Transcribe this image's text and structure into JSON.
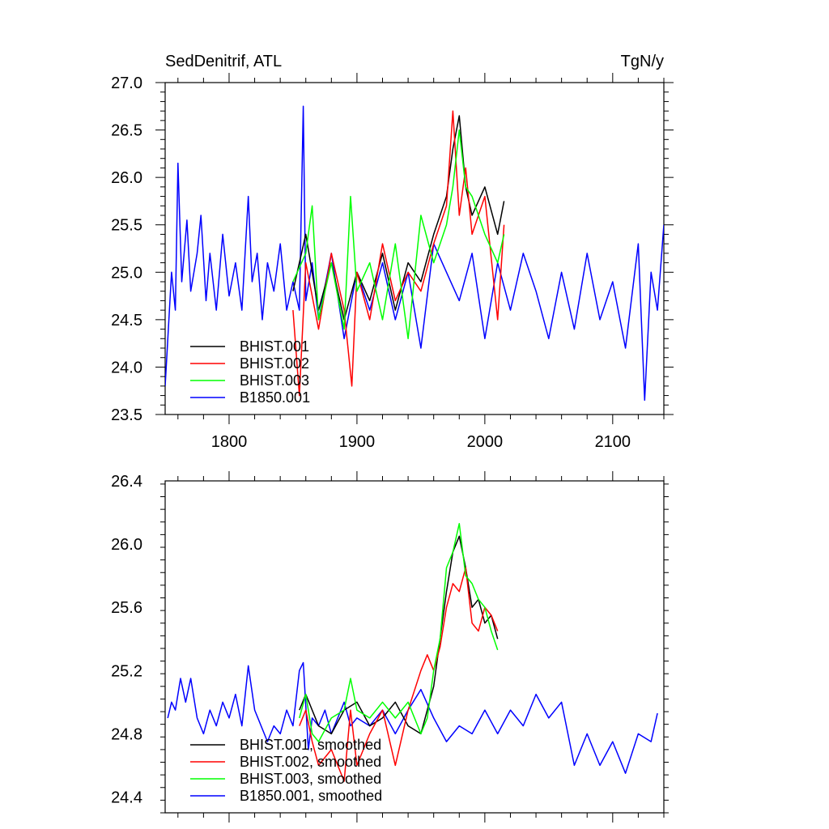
{
  "chart_data": [
    {
      "type": "line",
      "title": "SedDenitrif, ATL",
      "units": "TgN/y",
      "xlim": [
        1750,
        2140
      ],
      "ylim": [
        23.5,
        27.0
      ],
      "xticks": [
        1800,
        1900,
        2000,
        2100
      ],
      "yticks": [
        23.5,
        24.0,
        24.5,
        25.0,
        25.5,
        26.0,
        26.5,
        27.0
      ],
      "ytick_labels": [
        "23.5",
        "24.0",
        "24.5",
        "25.0",
        "25.5",
        "26.0",
        "26.5",
        "27.0"
      ],
      "legend_location": "bottom-left",
      "series": [
        {
          "name": "B1850.001",
          "color": "#0000ff",
          "x": [
            1750,
            1755,
            1758,
            1760,
            1763,
            1767,
            1770,
            1775,
            1778,
            1782,
            1785,
            1790,
            1795,
            1800,
            1805,
            1810,
            1815,
            1818,
            1822,
            1826,
            1830,
            1835,
            1840,
            1845,
            1850,
            1855,
            1858,
            1860,
            1865,
            1870,
            1880,
            1890,
            1900,
            1910,
            1920,
            1930,
            1940,
            1950,
            1960,
            1970,
            1980,
            1990,
            2000,
            2010,
            2020,
            2030,
            2040,
            2050,
            2060,
            2070,
            2080,
            2090,
            2100,
            2110,
            2120,
            2125,
            2130,
            2135,
            2140
          ],
          "y": [
            23.8,
            25.0,
            24.6,
            26.15,
            24.9,
            25.55,
            24.8,
            25.2,
            25.6,
            24.7,
            25.2,
            24.6,
            25.4,
            24.75,
            25.1,
            24.6,
            25.8,
            24.9,
            25.2,
            24.5,
            25.1,
            24.8,
            25.3,
            24.6,
            24.9,
            24.6,
            26.75,
            24.7,
            25.1,
            24.5,
            25.2,
            24.3,
            25.0,
            24.6,
            25.1,
            24.5,
            25.0,
            24.2,
            25.3,
            25.0,
            24.7,
            25.2,
            24.3,
            25.1,
            24.6,
            25.2,
            24.8,
            24.3,
            25.0,
            24.4,
            25.2,
            24.5,
            24.9,
            24.2,
            25.3,
            23.65,
            25.0,
            24.6,
            25.5
          ]
        },
        {
          "name": "BHIST.001",
          "color": "#000000",
          "x": [
            1850,
            1860,
            1870,
            1880,
            1890,
            1900,
            1910,
            1920,
            1930,
            1940,
            1950,
            1960,
            1970,
            1975,
            1980,
            1985,
            1990,
            2000,
            2010,
            2015
          ],
          "y": [
            24.8,
            25.4,
            24.6,
            25.1,
            24.5,
            25.0,
            24.7,
            25.2,
            24.6,
            25.1,
            24.9,
            25.4,
            25.8,
            26.3,
            26.65,
            25.9,
            25.6,
            25.9,
            25.4,
            25.75
          ]
        },
        {
          "name": "BHIST.002",
          "color": "#ff0000",
          "x": [
            1850,
            1855,
            1860,
            1870,
            1880,
            1890,
            1896,
            1900,
            1910,
            1920,
            1930,
            1940,
            1950,
            1960,
            1970,
            1975,
            1980,
            1985,
            1990,
            2000,
            2010,
            2015
          ],
          "y": [
            24.6,
            23.7,
            25.1,
            24.4,
            25.2,
            24.6,
            23.8,
            25.0,
            24.5,
            25.3,
            24.7,
            25.0,
            24.8,
            25.3,
            25.7,
            26.7,
            25.6,
            26.1,
            25.4,
            25.8,
            24.5,
            25.5
          ]
        },
        {
          "name": "BHIST.003",
          "color": "#00ff00",
          "x": [
            1850,
            1860,
            1865,
            1870,
            1880,
            1890,
            1895,
            1900,
            1910,
            1920,
            1930,
            1940,
            1950,
            1960,
            1970,
            1975,
            1980,
            1985,
            1990,
            2000,
            2010,
            2015
          ],
          "y": [
            24.9,
            25.2,
            25.7,
            24.5,
            25.1,
            24.4,
            25.8,
            24.8,
            25.1,
            24.5,
            25.3,
            24.3,
            25.6,
            25.1,
            25.5,
            25.9,
            26.5,
            25.9,
            25.8,
            25.4,
            25.1,
            25.4
          ]
        }
      ]
    },
    {
      "type": "line",
      "xlim": [
        1750,
        2140
      ],
      "ylim": [
        24.3,
        26.4
      ],
      "xticks": [
        1800,
        1900,
        2000,
        2100
      ],
      "yticks": [
        24.4,
        24.8,
        25.2,
        25.6,
        26.0,
        26.4
      ],
      "ytick_labels": [
        "24.4",
        "24.8",
        "25.2",
        "25.6",
        "26.0",
        "26.4"
      ],
      "legend_location": "bottom-left",
      "series": [
        {
          "name": "B1850.001, smoothed",
          "color": "#0000ff",
          "x": [
            1752,
            1755,
            1758,
            1762,
            1766,
            1770,
            1775,
            1780,
            1785,
            1790,
            1795,
            1800,
            1805,
            1810,
            1815,
            1820,
            1825,
            1830,
            1835,
            1840,
            1845,
            1850,
            1855,
            1858,
            1862,
            1865,
            1870,
            1875,
            1880,
            1885,
            1890,
            1895,
            1900,
            1910,
            1920,
            1930,
            1940,
            1950,
            1960,
            1970,
            1980,
            1990,
            2000,
            2010,
            2020,
            2030,
            2040,
            2050,
            2060,
            2070,
            2080,
            2090,
            2100,
            2110,
            2120,
            2130,
            2135
          ],
          "y": [
            24.9,
            25.0,
            24.95,
            25.15,
            25.0,
            25.15,
            24.9,
            24.8,
            24.95,
            24.85,
            25.0,
            24.9,
            25.05,
            24.85,
            25.23,
            24.95,
            24.85,
            24.75,
            24.85,
            24.8,
            24.95,
            24.85,
            25.2,
            25.25,
            24.7,
            24.9,
            24.85,
            24.95,
            24.8,
            24.9,
            25.0,
            24.85,
            24.9,
            24.85,
            24.95,
            24.8,
            24.95,
            25.08,
            24.9,
            24.75,
            24.85,
            24.8,
            24.95,
            24.8,
            24.95,
            24.85,
            25.05,
            24.9,
            25.0,
            24.6,
            24.8,
            24.6,
            24.75,
            24.55,
            24.8,
            24.75,
            24.93
          ]
        },
        {
          "name": "BHIST.001, smoothed",
          "color": "#000000",
          "x": [
            1855,
            1860,
            1865,
            1870,
            1880,
            1890,
            1900,
            1910,
            1920,
            1930,
            1940,
            1950,
            1955,
            1960,
            1965,
            1970,
            1975,
            1980,
            1985,
            1990,
            1995,
            2000,
            2005,
            2010
          ],
          "y": [
            24.95,
            25.05,
            24.95,
            24.85,
            24.8,
            24.95,
            25.0,
            24.85,
            24.9,
            25.0,
            24.85,
            24.8,
            24.95,
            25.1,
            25.4,
            25.7,
            25.95,
            26.05,
            25.85,
            25.6,
            25.65,
            25.5,
            25.55,
            25.4
          ]
        },
        {
          "name": "BHIST.002, smoothed",
          "color": "#ff0000",
          "x": [
            1855,
            1860,
            1865,
            1870,
            1880,
            1890,
            1895,
            1900,
            1910,
            1920,
            1930,
            1940,
            1950,
            1955,
            1960,
            1965,
            1970,
            1975,
            1980,
            1985,
            1990,
            1995,
            2000,
            2005,
            2010
          ],
          "y": [
            24.85,
            24.95,
            24.75,
            24.6,
            24.7,
            24.5,
            24.95,
            24.6,
            24.8,
            24.95,
            24.6,
            24.95,
            25.2,
            25.3,
            25.2,
            25.35,
            25.6,
            25.75,
            25.7,
            25.85,
            25.5,
            25.45,
            25.6,
            25.55,
            25.45
          ]
        },
        {
          "name": "BHIST.003, smoothed",
          "color": "#00ff00",
          "x": [
            1855,
            1860,
            1865,
            1870,
            1880,
            1890,
            1895,
            1900,
            1910,
            1920,
            1930,
            1940,
            1950,
            1955,
            1960,
            1965,
            1970,
            1975,
            1980,
            1985,
            1990,
            1995,
            2000,
            2005,
            2010
          ],
          "y": [
            24.9,
            25.05,
            24.8,
            24.75,
            24.9,
            24.95,
            25.15,
            24.95,
            24.9,
            25.0,
            24.9,
            25.0,
            24.8,
            24.9,
            25.2,
            25.4,
            25.85,
            25.95,
            26.13,
            25.8,
            25.75,
            25.65,
            25.6,
            25.45,
            25.33
          ]
        }
      ]
    }
  ]
}
